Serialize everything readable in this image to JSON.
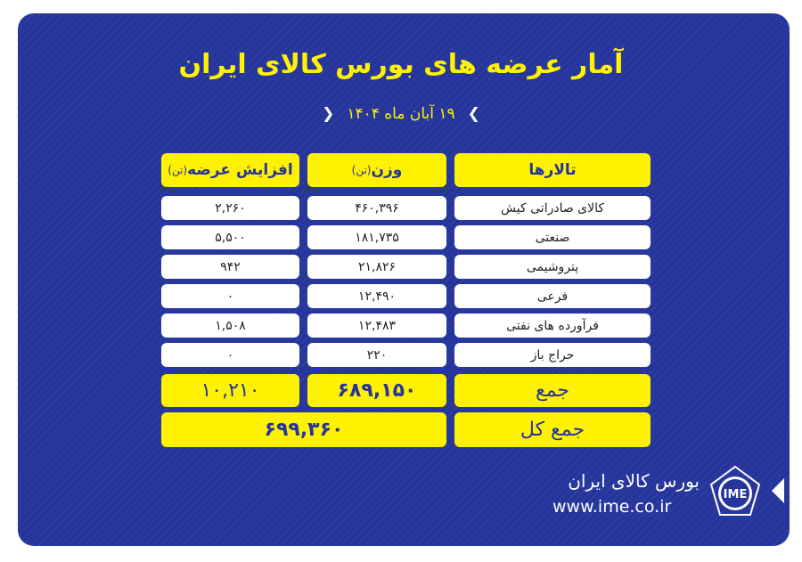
{
  "title": "آمار عرضه های بورس کالای ایران",
  "date": "۱۹ آبان ماه ۱۴۰۴",
  "colors": {
    "background": "#25359b",
    "accent": "#fff200"
  },
  "table": {
    "headers": {
      "hall": "تالارها",
      "weight": "وزن",
      "weight_unit": "(تن)",
      "increase": "افزایش عرضه",
      "increase_unit": "(تن)"
    },
    "rows": [
      {
        "hall": "کالای صادراتی کیش",
        "weight": "۴۶۰,۳۹۶",
        "increase": "۲,۲۶۰"
      },
      {
        "hall": "صنعتی",
        "weight": "۱۸۱,۷۳۵",
        "increase": "۵,۵۰۰"
      },
      {
        "hall": "پتروشیمی",
        "weight": "۲۱,۸۲۶",
        "increase": "۹۴۲"
      },
      {
        "hall": "فرعی",
        "weight": "۱۲,۴۹۰",
        "increase": "۰"
      },
      {
        "hall": "فرآورده های نفتی",
        "weight": "۱۲,۴۸۳",
        "increase": "۱,۵۰۸"
      },
      {
        "hall": "حراج باز",
        "weight": "۲۲۰",
        "increase": "۰"
      }
    ],
    "sum": {
      "label": "جمع",
      "weight": "۶۸۹,۱۵۰",
      "increase": "۱۰,۲۱۰"
    },
    "total": {
      "label": "جمع کل",
      "value": "۶۹۹,۳۶۰"
    }
  },
  "footer": {
    "brand": "بورس کالای ایران",
    "url": "www.ime.co.ir",
    "logo_text": "IME"
  }
}
